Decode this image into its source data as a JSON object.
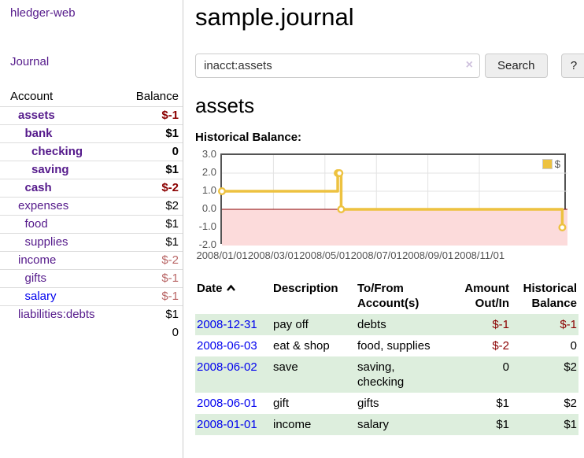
{
  "app": {
    "brand": "hledger-web",
    "nav_journal": "Journal"
  },
  "sidebar": {
    "header": {
      "account": "Account",
      "balance": "Balance"
    },
    "accounts": [
      {
        "name": "assets",
        "balance": "$-1",
        "indent": 0,
        "bold": true,
        "balance_class": "neg-strong"
      },
      {
        "name": "bank",
        "balance": "$1",
        "indent": 1,
        "bold": true,
        "balance_class": ""
      },
      {
        "name": "checking",
        "balance": "0",
        "indent": 2,
        "bold": true,
        "balance_class": ""
      },
      {
        "name": "saving",
        "balance": "$1",
        "indent": 2,
        "bold": true,
        "balance_class": ""
      },
      {
        "name": "cash",
        "balance": "$-2",
        "indent": 1,
        "bold": true,
        "balance_class": "neg-strong"
      },
      {
        "name": "expenses",
        "balance": "$2",
        "indent": 0,
        "bold": false,
        "balance_class": "reg"
      },
      {
        "name": "food",
        "balance": "$1",
        "indent": 1,
        "bold": false,
        "balance_class": "reg"
      },
      {
        "name": "supplies",
        "balance": "$1",
        "indent": 1,
        "bold": false,
        "balance_class": "reg"
      },
      {
        "name": "income",
        "balance": "$-2",
        "indent": 0,
        "bold": false,
        "balance_class": "reg neg-muted"
      },
      {
        "name": "gifts",
        "balance": "$-1",
        "indent": 1,
        "bold": false,
        "balance_class": "reg neg-muted"
      },
      {
        "name": "salary",
        "balance": "$-1",
        "indent": 1,
        "bold": false,
        "blue": true,
        "balance_class": "reg neg-muted"
      },
      {
        "name": "liabilities:debts",
        "balance": "$1",
        "indent": 0,
        "bold": false,
        "balance_class": "reg"
      }
    ],
    "total": "0"
  },
  "main": {
    "title": "sample.journal",
    "search": {
      "value": "inacct:assets",
      "clear_icon": "×",
      "button": "Search",
      "help_button": "?"
    },
    "account_heading": "assets",
    "chart_heading": "Historical Balance:"
  },
  "chart_data": {
    "type": "line",
    "title": "Historical Balance of assets",
    "style": "steps",
    "grid": true,
    "legend_position": "top-right",
    "legend": [
      {
        "label": "$",
        "color": "#EDC240"
      }
    ],
    "ylim": [
      -2,
      3
    ],
    "y_ticks": [
      {
        "label": "3.0",
        "value": 3
      },
      {
        "label": "2.0",
        "value": 2
      },
      {
        "label": "1.0",
        "value": 1
      },
      {
        "label": "0.0",
        "value": 0
      },
      {
        "label": "-1.0",
        "value": -1
      },
      {
        "label": "-2.0",
        "value": -2
      }
    ],
    "x_ticks": [
      {
        "label": "2008/01/01",
        "xf": 0.0
      },
      {
        "label": "2008/03/01",
        "xf": 0.149
      },
      {
        "label": "2008/05/01",
        "xf": 0.298
      },
      {
        "label": "2008/07/01",
        "xf": 0.447
      },
      {
        "label": "2008/09/01",
        "xf": 0.596
      },
      {
        "label": "2008/11/01",
        "xf": 0.745
      }
    ],
    "series": [
      {
        "name": "$",
        "color": "#EDC240",
        "points": [
          {
            "date": "2008-01-01",
            "value": 1,
            "xf": 0.0
          },
          {
            "date": "2008-06-01",
            "value": 2,
            "xf": 0.335
          },
          {
            "date": "2008-06-02",
            "value": 2,
            "xf": 0.34
          },
          {
            "date": "2008-06-03",
            "value": 0,
            "xf": 0.345
          },
          {
            "date": "2008-12-31",
            "value": -1,
            "xf": 0.985
          }
        ]
      }
    ],
    "negative_region_color": "#fcdbdb",
    "zero_line_color": "#8b0000",
    "gridline_color": "#e3e3e3",
    "border_color": "#545454"
  },
  "register": {
    "columns": [
      "Date",
      "Description",
      "To/From Account(s)",
      "Amount Out/In",
      "Historical Balance"
    ],
    "rows": [
      {
        "date": "2008-12-31",
        "description": "pay off",
        "accounts": "debts",
        "amount": "$-1",
        "amount_neg": true,
        "balance": "$-1",
        "balance_neg": true
      },
      {
        "date": "2008-06-03",
        "description": "eat & shop",
        "accounts": "food, supplies",
        "amount": "$-2",
        "amount_neg": true,
        "balance": "0",
        "balance_neg": false
      },
      {
        "date": "2008-06-02",
        "description": "save",
        "accounts": "saving, checking",
        "amount": "0",
        "amount_neg": false,
        "balance": "$2",
        "balance_neg": false
      },
      {
        "date": "2008-06-01",
        "description": "gift",
        "accounts": "gifts",
        "amount": "$1",
        "amount_neg": false,
        "balance": "$2",
        "balance_neg": false
      },
      {
        "date": "2008-01-01",
        "description": "income",
        "accounts": "salary",
        "amount": "$1",
        "amount_neg": false,
        "balance": "$1",
        "balance_neg": false
      }
    ]
  }
}
